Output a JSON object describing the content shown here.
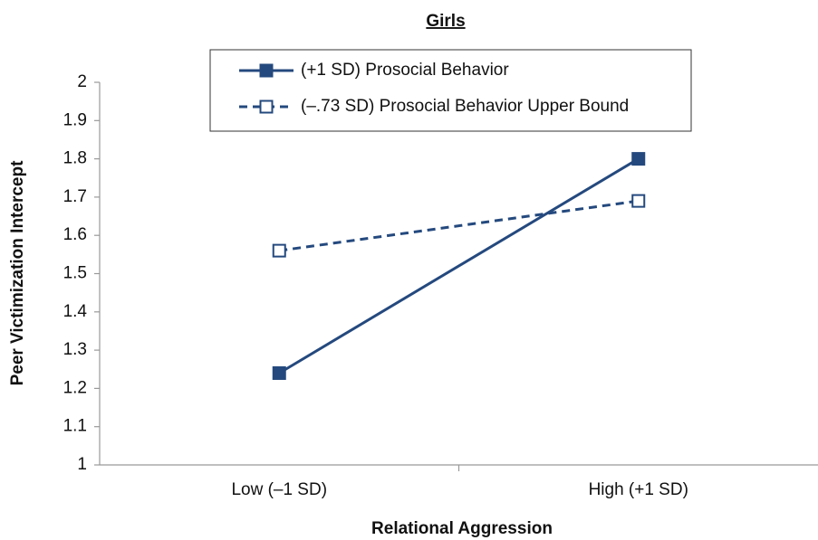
{
  "chart_data": {
    "type": "line",
    "title": "Girls",
    "x_label": "Relational Aggression",
    "y_label": "Peer Victimization Intercept",
    "categories": [
      "Low (–1 SD)",
      "High (+1 SD)"
    ],
    "series": [
      {
        "name": "(+1 SD) Prosocial Behavior",
        "color": "#24497e",
        "line_style": "solid",
        "marker": "filled-square",
        "values": [
          1.24,
          1.8
        ]
      },
      {
        "name": "(–.73 SD) Prosocial Behavior Upper Bound",
        "color": "#24497e",
        "line_style": "dashed",
        "marker": "hollow-square",
        "values": [
          1.56,
          1.69
        ]
      }
    ],
    "ylim": [
      1,
      2
    ],
    "yticks": [
      1,
      1.1,
      1.2,
      1.3,
      1.4,
      1.5,
      1.6,
      1.7,
      1.8,
      1.9,
      2
    ],
    "grid": false,
    "legend": "top"
  }
}
